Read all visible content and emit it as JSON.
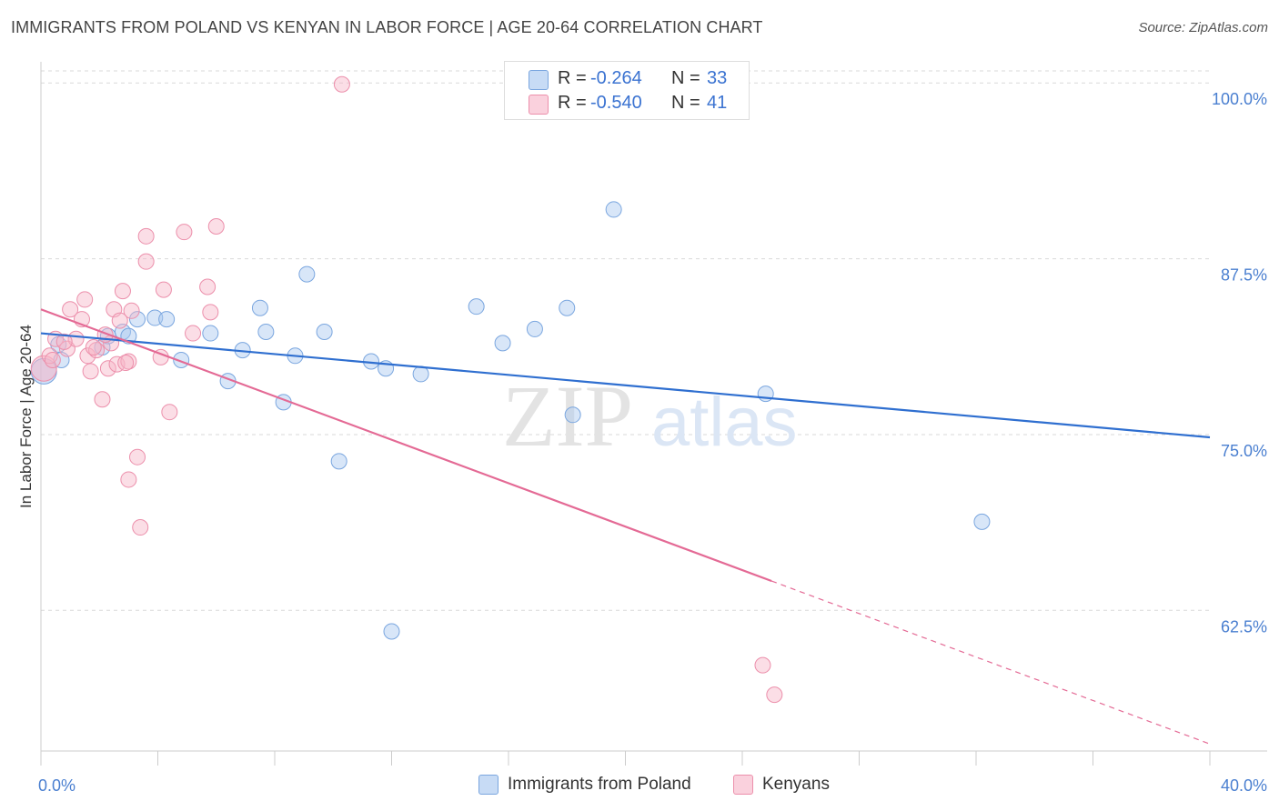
{
  "header": {
    "title": "IMMIGRANTS FROM POLAND VS KENYAN IN LABOR FORCE | AGE 20-64 CORRELATION CHART",
    "source": "Source: ZipAtlas.com"
  },
  "watermark": {
    "zip": "ZIP",
    "atlas": "atlas"
  },
  "legend": {
    "rows": [
      {
        "r_label": "R =",
        "r_value": "-0.264",
        "n_label": "N =",
        "n_value": "33",
        "color": "#a9c7f0"
      },
      {
        "r_label": "R =",
        "r_value": "-0.540",
        "n_label": "N =",
        "n_value": "41",
        "color": "#f6b6c8"
      }
    ]
  },
  "bottom_legend": {
    "poland": "Immigrants from Poland",
    "kenyans": "Kenyans"
  },
  "chart_data": {
    "type": "scatter",
    "title": "IMMIGRANTS FROM POLAND VS KENYAN IN LABOR FORCE | AGE 20-64 CORRELATION CHART",
    "xlabel": "",
    "ylabel": "In Labor Force | Age 20-64",
    "xlim": [
      0,
      40
    ],
    "ylim": [
      52.5,
      101.5
    ],
    "x_tick_labels": [
      "0.0%",
      "40.0%"
    ],
    "y_ticks": [
      62.5,
      75.0,
      87.5,
      100.0
    ],
    "y_tick_labels": [
      "62.5%",
      "75.0%",
      "87.5%",
      "100.0%"
    ],
    "grid": true,
    "legend_position": "top-center",
    "series": [
      {
        "name": "Immigrants from Poland",
        "color": "#a9c7f0",
        "edge": "#7aa6df",
        "line_color": "#2f6fd0",
        "trend": {
          "x0": 0.0,
          "y0": 82.2,
          "x1": 40.0,
          "y1": 74.8,
          "solid_until": 40.0
        },
        "points": [
          [
            0.1,
            79.5
          ],
          [
            0.7,
            80.3
          ],
          [
            2.1,
            81.2
          ],
          [
            2.3,
            82.0
          ],
          [
            2.8,
            82.3
          ],
          [
            3.3,
            83.2
          ],
          [
            3.9,
            83.3
          ],
          [
            4.3,
            83.2
          ],
          [
            4.8,
            80.3
          ],
          [
            5.8,
            82.2
          ],
          [
            6.4,
            78.8
          ],
          [
            6.9,
            81.0
          ],
          [
            7.5,
            84.0
          ],
          [
            7.7,
            82.3
          ],
          [
            8.3,
            77.3
          ],
          [
            8.7,
            80.6
          ],
          [
            9.1,
            86.4
          ],
          [
            9.7,
            82.3
          ],
          [
            10.2,
            73.1
          ],
          [
            11.3,
            80.2
          ],
          [
            11.8,
            79.7
          ],
          [
            12.0,
            61.0
          ],
          [
            13.0,
            79.3
          ],
          [
            14.9,
            84.1
          ],
          [
            15.8,
            81.5
          ],
          [
            16.9,
            82.5
          ],
          [
            18.0,
            84.0
          ],
          [
            18.2,
            76.4
          ],
          [
            19.6,
            91.0
          ],
          [
            24.8,
            77.9
          ],
          [
            32.2,
            68.8
          ],
          [
            0.6,
            81.4
          ],
          [
            3.0,
            82.0
          ]
        ]
      },
      {
        "name": "Kenyans",
        "color": "#f6b6c8",
        "edge": "#ec8fab",
        "line_color": "#e46a95",
        "trend": {
          "x0": 0.0,
          "y0": 83.9,
          "x1": 40.0,
          "y1": 53.0,
          "solid_until": 25.0
        },
        "points": [
          [
            0.1,
            79.7
          ],
          [
            0.3,
            80.6
          ],
          [
            0.5,
            81.8
          ],
          [
            0.9,
            81.1
          ],
          [
            1.0,
            83.9
          ],
          [
            1.2,
            81.8
          ],
          [
            1.4,
            83.2
          ],
          [
            1.5,
            84.6
          ],
          [
            1.6,
            80.6
          ],
          [
            1.7,
            79.5
          ],
          [
            1.9,
            81.0
          ],
          [
            2.1,
            77.5
          ],
          [
            2.3,
            79.7
          ],
          [
            2.4,
            81.5
          ],
          [
            2.5,
            83.9
          ],
          [
            2.6,
            80.0
          ],
          [
            2.7,
            83.1
          ],
          [
            2.8,
            85.2
          ],
          [
            3.0,
            80.2
          ],
          [
            3.1,
            83.8
          ],
          [
            3.3,
            73.4
          ],
          [
            3.4,
            68.4
          ],
          [
            3.6,
            89.1
          ],
          [
            3.6,
            87.3
          ],
          [
            4.1,
            80.5
          ],
          [
            4.2,
            85.3
          ],
          [
            4.4,
            76.6
          ],
          [
            4.9,
            89.4
          ],
          [
            5.2,
            82.2
          ],
          [
            5.7,
            85.5
          ],
          [
            5.8,
            83.7
          ],
          [
            6.0,
            89.8
          ],
          [
            3.0,
            71.8
          ],
          [
            10.3,
            99.9
          ],
          [
            24.7,
            58.6
          ],
          [
            25.1,
            56.5
          ],
          [
            0.8,
            81.6
          ],
          [
            1.8,
            81.2
          ],
          [
            2.2,
            82.1
          ],
          [
            2.9,
            80.1
          ],
          [
            0.4,
            80.3
          ]
        ]
      }
    ]
  }
}
